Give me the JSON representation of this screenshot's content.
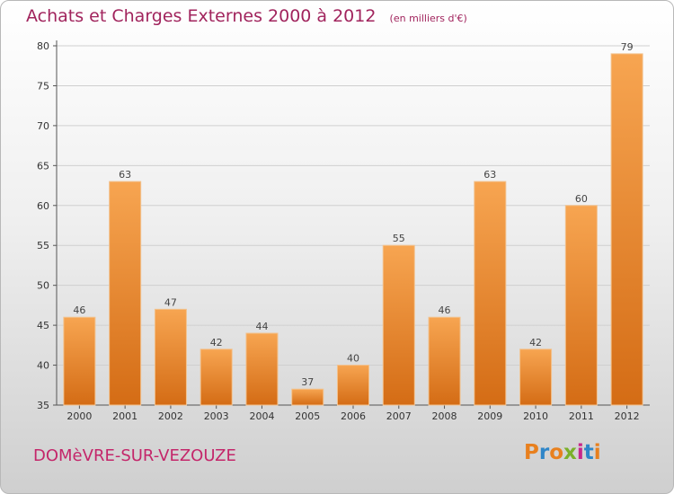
{
  "header": {
    "title": "Achats et Charges Externes 2000 à 2012",
    "unit": "(en milliers d'€)"
  },
  "footer": {
    "commune": "DOMèVRE-SUR-VEZOUZE",
    "logo": "Proxiti",
    "logo_letter_colors": [
      "#e8801e",
      "#2f86c8",
      "#e8801e",
      "#7ab02a",
      "#c8268a",
      "#2f86c8",
      "#e8801e"
    ]
  },
  "colors": {
    "title": "#a1245d",
    "bar_light": "#f7a551",
    "bar_dark": "#d46c15",
    "grid": "#cfcfcf"
  },
  "chart_data": {
    "type": "bar",
    "title": "Achats et Charges Externes 2000 à 2012",
    "subtitle": "(en milliers d'€)",
    "xlabel": "",
    "ylabel": "",
    "categories": [
      "2000",
      "2001",
      "2002",
      "2003",
      "2004",
      "2005",
      "2006",
      "2007",
      "2008",
      "2009",
      "2010",
      "2011",
      "2012"
    ],
    "values": [
      46,
      63,
      47,
      42,
      44,
      37,
      40,
      55,
      46,
      63,
      42,
      60,
      79
    ],
    "ylim": [
      35,
      80
    ],
    "yticks": [
      35,
      40,
      45,
      50,
      55,
      60,
      65,
      70,
      75,
      80
    ],
    "grid": true
  }
}
